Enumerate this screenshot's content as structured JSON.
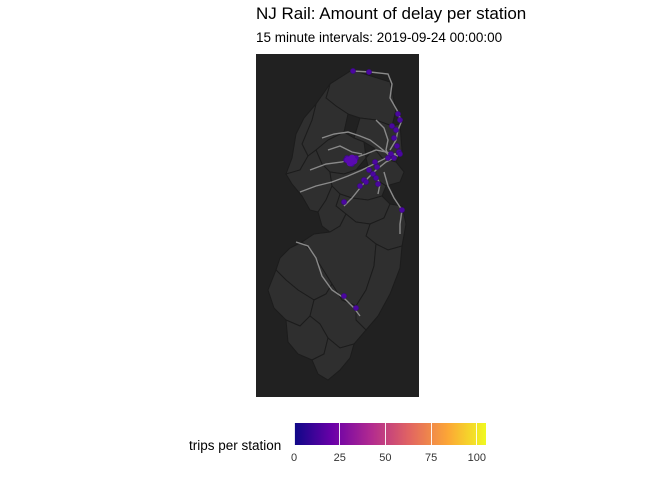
{
  "title": "NJ Rail: Amount of delay per station",
  "subtitle": "15 minute intervals: 2019-09-24 00:00:00",
  "map": {
    "region": "New Jersey",
    "background_color": "#212121",
    "county_fill": "#2f2f2f",
    "county_border": "#1c1c1c",
    "rail_line_color": "#8a8a8a",
    "station_color": "#4b06a0",
    "station_delays": [
      0,
      0,
      0,
      0,
      0,
      0,
      0,
      0,
      0,
      0,
      0,
      0,
      0,
      0,
      0,
      0,
      0,
      0,
      0,
      0,
      0,
      0,
      0,
      0,
      0,
      0,
      0,
      0,
      0,
      0,
      0
    ]
  },
  "legend": {
    "title": "trips per station",
    "palette": "plasma",
    "colors": [
      "#0d0887",
      "#6a00a8",
      "#b12a90",
      "#e16462",
      "#fca636",
      "#f0f921"
    ],
    "min": 0,
    "max": 105,
    "ticks": [
      {
        "value": 0,
        "label": "0"
      },
      {
        "value": 25,
        "label": "25"
      },
      {
        "value": 50,
        "label": "50"
      },
      {
        "value": 75,
        "label": "75"
      },
      {
        "value": 100,
        "label": "100"
      }
    ]
  }
}
